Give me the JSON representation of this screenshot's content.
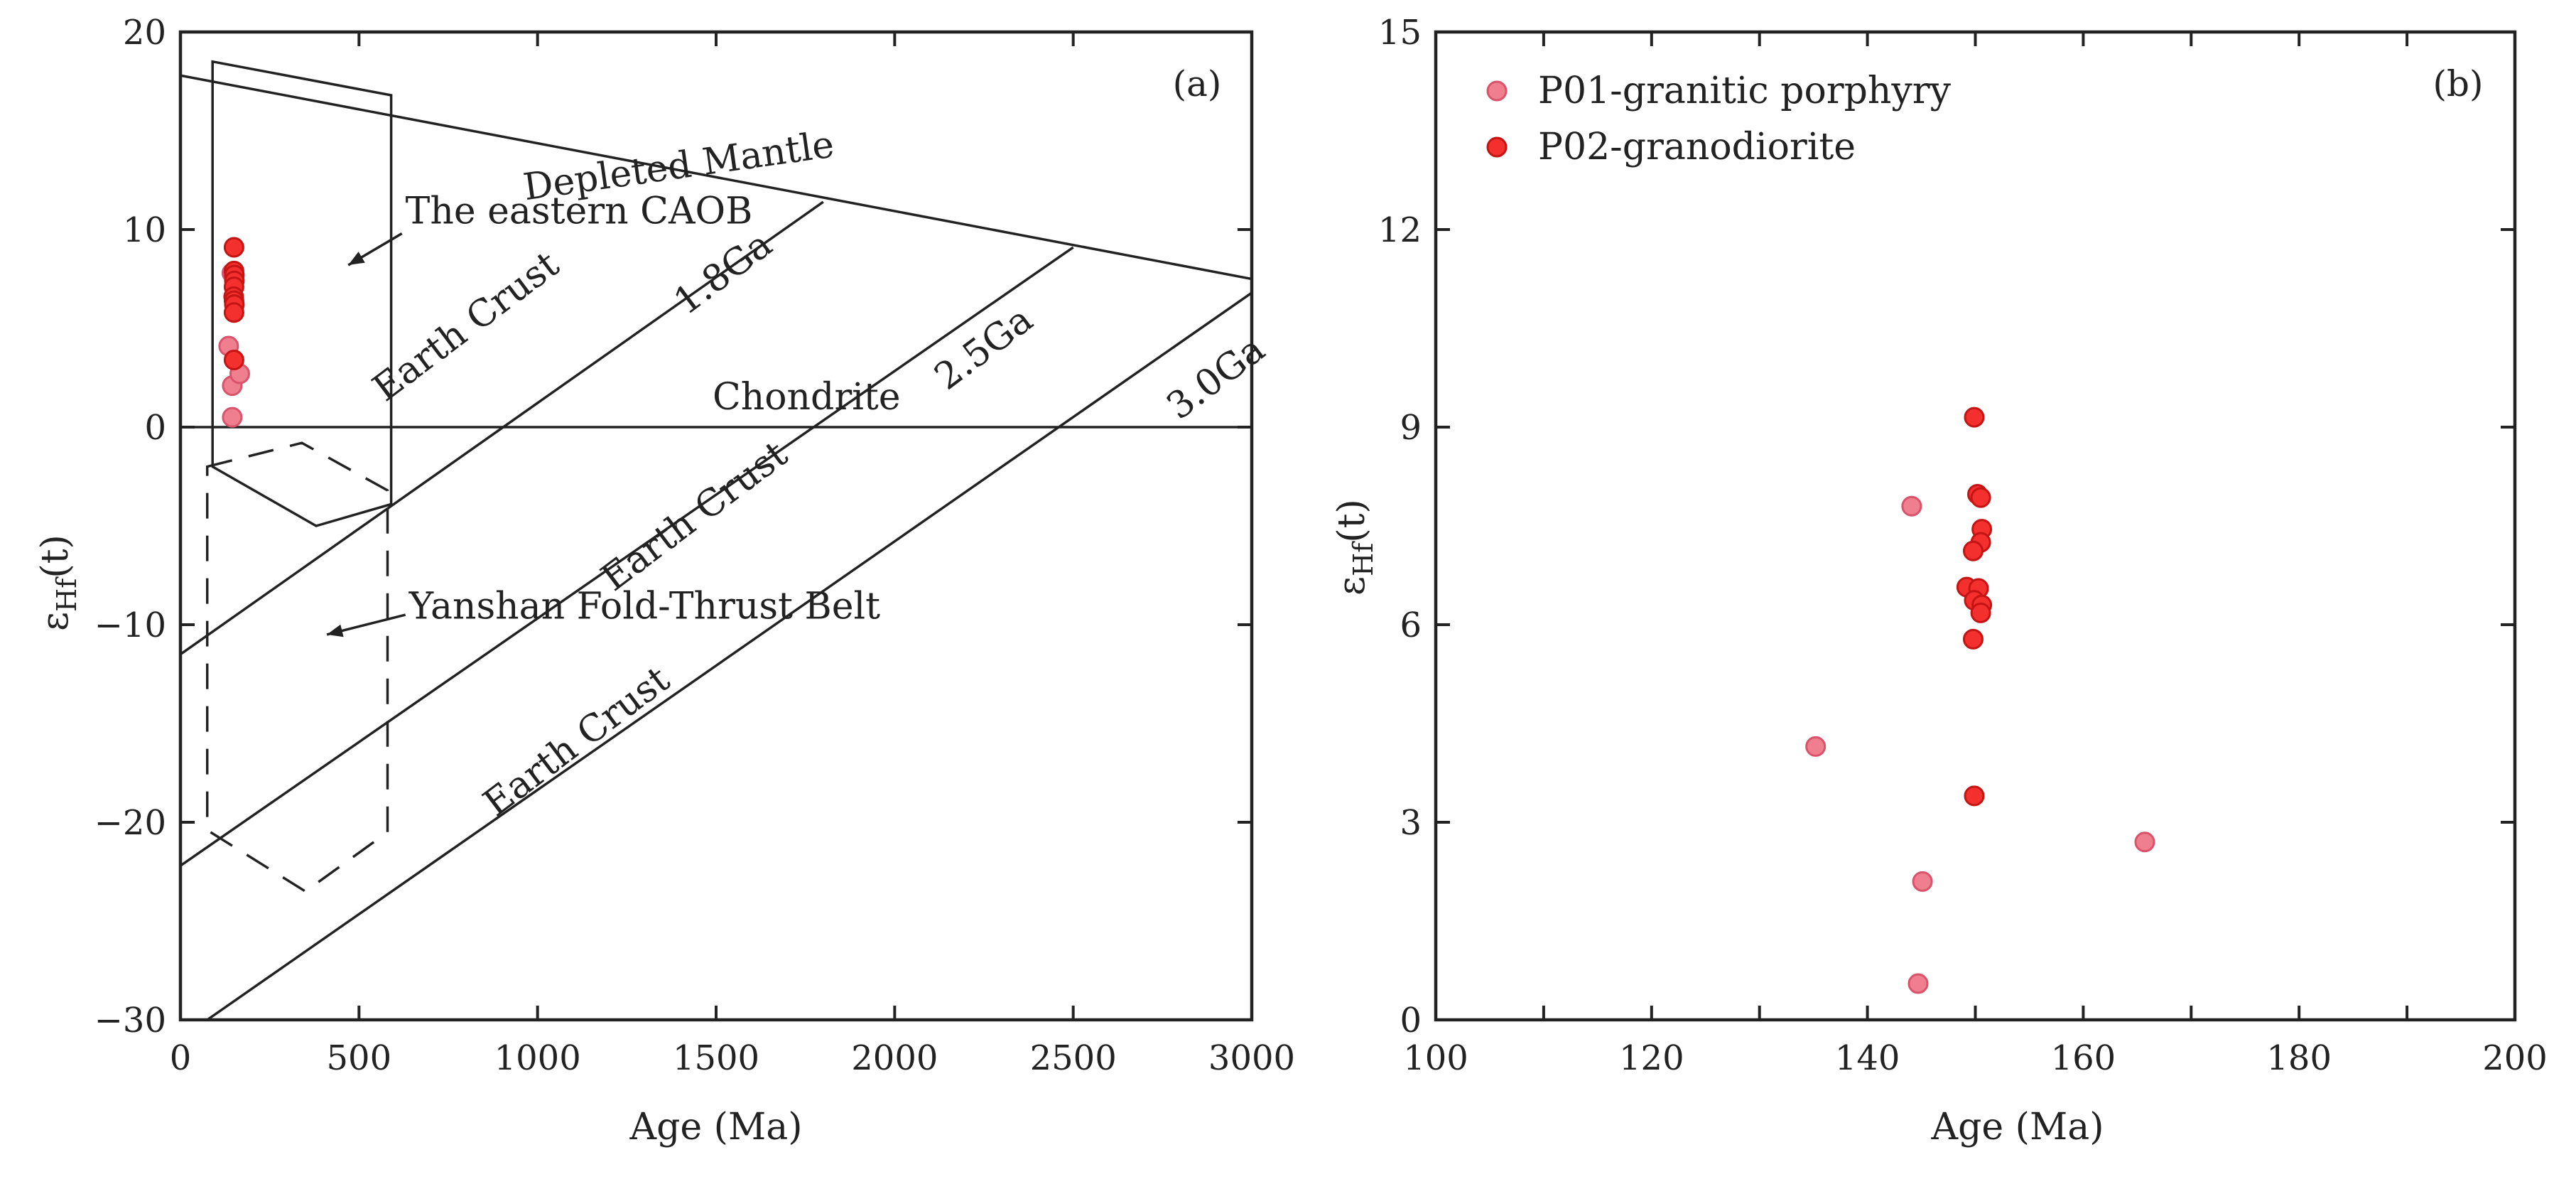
{
  "colors": {
    "p01_fill": "#ef7f8f",
    "p01_stroke": "#d9536a",
    "p02_fill": "#f4302e",
    "p02_stroke": "#c41414",
    "ink": "#222222"
  },
  "chart_data": [
    {
      "id": "a",
      "type": "scatter",
      "panel_label": "(a)",
      "xlabel": "Age (Ma)",
      "ylabel_base": "ε",
      "ylabel_sub": "Hf",
      "ylabel_tail": "(t)",
      "xlim": [
        0,
        3000
      ],
      "ylim": [
        -30,
        20
      ],
      "xticks": [
        0,
        500,
        1000,
        1500,
        2000,
        2500,
        3000
      ],
      "yticks": [
        -30,
        -20,
        -10,
        0,
        10,
        20
      ],
      "xtick_labels": [
        "0",
        "500",
        "1000",
        "1500",
        "2000",
        "2500",
        "3000"
      ],
      "ytick_labels": [
        "−30",
        "−20",
        "−10",
        "0",
        "10",
        "20"
      ],
      "reference_lines": [
        {
          "name": "Depleted Mantle",
          "points": [
            [
              0,
              17.8
            ],
            [
              3000,
              7.5
            ]
          ]
        },
        {
          "name": "Chondrite",
          "points": [
            [
              0,
              0
            ],
            [
              3000,
              0
            ]
          ]
        },
        {
          "name": "Earth Crust 1.8Ga",
          "points": [
            [
              0,
              -11.5
            ],
            [
              1800,
              11.4
            ]
          ]
        },
        {
          "name": "Earth Crust 2.5Ga",
          "points": [
            [
              0,
              -22.2
            ],
            [
              2500,
              9.1
            ]
          ]
        },
        {
          "name": "Earth Crust 3.0Ga",
          "points": [
            [
              75,
              -30
            ],
            [
              3000,
              6.8
            ]
          ]
        }
      ],
      "fields": [
        {
          "name": "The eastern CAOB",
          "style": "solid",
          "points": [
            [
              90,
              18.5
            ],
            [
              590,
              16.8
            ],
            [
              590,
              -3.9
            ],
            [
              380,
              -5
            ],
            [
              90,
              -2
            ]
          ]
        },
        {
          "name": "Yanshan Fold-Thrust Belt",
          "style": "dashed",
          "points": [
            [
              75,
              -2
            ],
            [
              340,
              -0.8
            ],
            [
              580,
              -3.2
            ],
            [
              580,
              -20.5
            ],
            [
              350,
              -23.5
            ],
            [
              75,
              -20.4
            ]
          ]
        }
      ],
      "annotations": [
        {
          "text": "Depleted Mantle",
          "x": 1400,
          "y": 12.6,
          "rotate": -8
        },
        {
          "text": "The eastern CAOB",
          "x": 630,
          "y": 10.3,
          "rotate": 0,
          "arrow_from": [
            620,
            9.8
          ],
          "arrow_to": [
            470,
            8.2
          ]
        },
        {
          "text": "Yanshan Fold-Thrust Belt",
          "x": 640,
          "y": -9.7,
          "rotate": 0,
          "arrow_from": [
            630,
            -9.5
          ],
          "arrow_to": [
            410,
            -10.5
          ]
        },
        {
          "text": "Earth Crust",
          "x": 820,
          "y": 4.6,
          "rotate": -37
        },
        {
          "text": "1.8Ga",
          "x": 1540,
          "y": 7.3,
          "rotate": -37
        },
        {
          "text": "Chondrite",
          "x": 1490,
          "y": 0.9,
          "rotate": 0
        },
        {
          "text": "Earth Crust",
          "x": 1460,
          "y": -5,
          "rotate": -37
        },
        {
          "text": "2.5Ga",
          "x": 2270,
          "y": 3.5,
          "rotate": -37
        },
        {
          "text": "Earth Crust",
          "x": 1130,
          "y": -16.4,
          "rotate": -37
        },
        {
          "text": "3.0Ga",
          "x": 2920,
          "y": 2,
          "rotate": -37
        }
      ],
      "series": [
        {
          "name": "P01-granitic porphyry",
          "color_key": "p01",
          "points": [
            [
              144,
              7.8
            ],
            [
              135,
              4.1
            ],
            [
              145,
              2.1
            ],
            [
              166,
              2.7
            ],
            [
              145,
              0.5
            ]
          ]
        },
        {
          "name": "P02-granodiorite",
          "color_key": "p02",
          "points": [
            [
              150,
              9.1
            ],
            [
              150,
              7.9
            ],
            [
              151,
              7.7
            ],
            [
              151,
              7.4
            ],
            [
              150,
              7.1
            ],
            [
              149,
              6.6
            ],
            [
              150,
              6.4
            ],
            [
              151,
              6.2
            ],
            [
              150,
              5.8
            ],
            [
              150,
              3.4
            ]
          ]
        }
      ]
    },
    {
      "id": "b",
      "type": "scatter",
      "panel_label": "(b)",
      "xlabel": "Age (Ma)",
      "ylabel_base": "ε",
      "ylabel_sub": "Hf",
      "ylabel_tail": "(t)",
      "xlim": [
        100,
        200
      ],
      "ylim": [
        0,
        15
      ],
      "xticks": [
        100,
        120,
        140,
        160,
        180,
        200
      ],
      "minor_xticks": [
        110,
        130,
        150,
        170,
        190
      ],
      "yticks": [
        0,
        3,
        6,
        9,
        12,
        15
      ],
      "xtick_labels": [
        "100",
        "120",
        "140",
        "160",
        "180",
        "200"
      ],
      "ytick_labels": [
        "0",
        "3",
        "6",
        "9",
        "12",
        "15"
      ],
      "legend": {
        "position": "top-left"
      },
      "series": [
        {
          "name": "P01-granitic porphyry",
          "color_key": "p01",
          "points": [
            [
              144.1,
              7.8
            ],
            [
              135.2,
              4.15
            ],
            [
              145.1,
              2.1
            ],
            [
              165.7,
              2.7
            ],
            [
              144.7,
              0.55
            ]
          ]
        },
        {
          "name": "P02-granodiorite",
          "color_key": "p02",
          "points": [
            [
              149.9,
              9.15
            ],
            [
              150.2,
              7.98
            ],
            [
              150.5,
              7.93
            ],
            [
              150.6,
              7.45
            ],
            [
              150.5,
              7.25
            ],
            [
              149.8,
              7.12
            ],
            [
              149.2,
              6.57
            ],
            [
              150.3,
              6.55
            ],
            [
              149.9,
              6.37
            ],
            [
              150.6,
              6.3
            ],
            [
              150.5,
              6.18
            ],
            [
              149.8,
              5.78
            ],
            [
              149.9,
              3.4
            ]
          ]
        }
      ]
    }
  ]
}
